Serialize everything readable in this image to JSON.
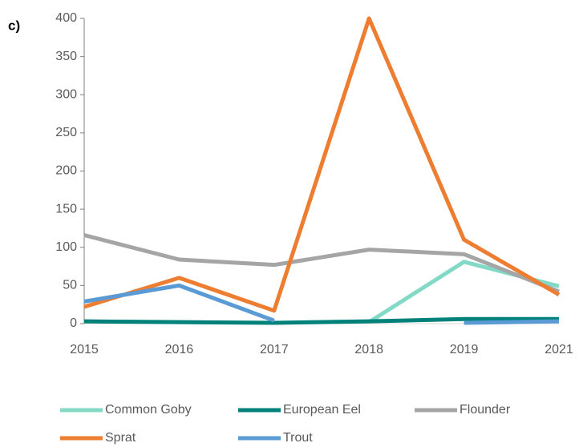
{
  "chart_data": {
    "type": "line",
    "annotation": "c)",
    "categories": [
      "2015",
      "2016",
      "2017",
      "2018",
      "2019",
      "2021"
    ],
    "series": [
      {
        "name": "Common Goby",
        "color": "#82dac6",
        "values": [
          null,
          null,
          null,
          2,
          81,
          49
        ]
      },
      {
        "name": "European Eel",
        "color": "#00827a",
        "values": [
          3,
          2,
          1,
          3,
          6,
          6
        ]
      },
      {
        "name": "Flounder",
        "color": "#a5a5a5",
        "values": [
          116,
          84,
          77,
          97,
          91,
          42
        ]
      },
      {
        "name": "Sprat",
        "color": "#ed7d31",
        "values": [
          22,
          60,
          17,
          400,
          110,
          38
        ]
      },
      {
        "name": "Trout",
        "color": "#5b9bd5",
        "values": [
          29,
          50,
          4,
          null,
          1,
          3
        ]
      }
    ],
    "ylim": [
      0,
      400
    ],
    "yticks": [
      0,
      50,
      100,
      150,
      200,
      250,
      300,
      350,
      400
    ],
    "legend": "bottom"
  }
}
